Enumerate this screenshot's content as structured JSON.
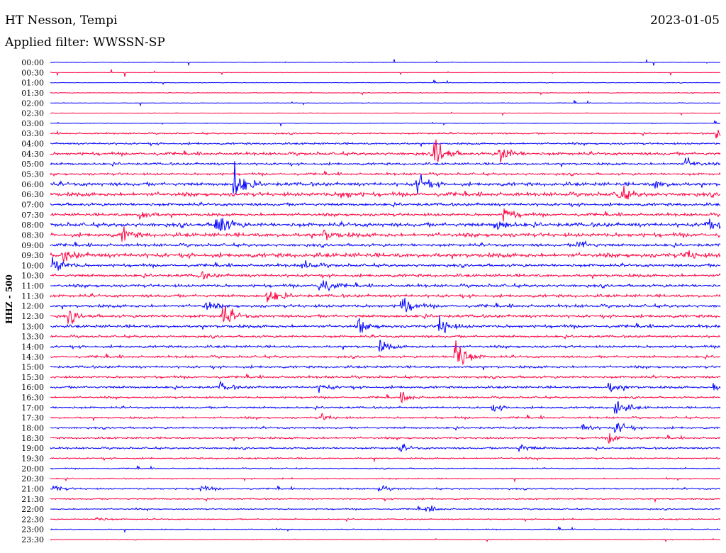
{
  "chart_data": {
    "type": "line",
    "title": "HT Nesson, Tempi",
    "subtitle": "Applied filter: WWSSN-SP",
    "date": "2023-01-05",
    "ylabel": "HHZ - 500",
    "row_minutes": 30,
    "row_labels": [
      "00:00",
      "00:30",
      "01:00",
      "01:30",
      "02:00",
      "02:30",
      "03:00",
      "03:30",
      "04:00",
      "04:30",
      "05:00",
      "05:30",
      "06:00",
      "06:30",
      "07:00",
      "07:30",
      "08:00",
      "08:30",
      "09:00",
      "09:30",
      "10:00",
      "10:30",
      "11:00",
      "11:30",
      "12:00",
      "12:30",
      "13:00",
      "13:30",
      "14:00",
      "14:30",
      "15:00",
      "15:30",
      "16:00",
      "16:30",
      "17:00",
      "17:30",
      "18:00",
      "18:30",
      "19:00",
      "19:30",
      "20:00",
      "20:30",
      "21:00",
      "21:30",
      "22:00",
      "22:30",
      "23:00",
      "23:30"
    ],
    "colors": [
      "#0000ff",
      "#ff0040"
    ],
    "noise_levels": [
      0.3,
      0.2,
      0.3,
      0.3,
      0.3,
      0.3,
      0.3,
      0.8,
      1,
      1.5,
      1.2,
      1.2,
      1.8,
      2,
      1.5,
      1.5,
      2,
      2,
      1.5,
      2.2,
      1.5,
      1.5,
      1.5,
      1.5,
      1.5,
      1.5,
      1.5,
      1.2,
      1.2,
      1.2,
      1.2,
      1.2,
      1.2,
      1,
      1,
      1,
      1,
      1,
      1,
      0.8,
      0.6,
      0.6,
      0.8,
      0.7,
      0.7,
      0.6,
      0.5,
      0.4
    ],
    "events": [
      {
        "row": 7,
        "minute": 29.8,
        "amp": 6
      },
      {
        "row": 9,
        "minute": 17.2,
        "amp": 25
      },
      {
        "row": 9,
        "minute": 20.1,
        "amp": 14
      },
      {
        "row": 10,
        "minute": 28.4,
        "amp": 8
      },
      {
        "row": 12,
        "minute": 8.2,
        "amp": 25
      },
      {
        "row": 12,
        "minute": 16.4,
        "amp": 14
      },
      {
        "row": 12,
        "minute": 27.0,
        "amp": 6
      },
      {
        "row": 13,
        "minute": 25.4,
        "amp": 12
      },
      {
        "row": 13,
        "minute": 13.0,
        "amp": 6
      },
      {
        "row": 15,
        "minute": 20.3,
        "amp": 10
      },
      {
        "row": 15,
        "minute": 4.0,
        "amp": 7
      },
      {
        "row": 16,
        "minute": 7.4,
        "amp": 22
      },
      {
        "row": 16,
        "minute": 19.9,
        "amp": 8
      },
      {
        "row": 16,
        "minute": 29.3,
        "amp": 8
      },
      {
        "row": 17,
        "minute": 3.2,
        "amp": 9
      },
      {
        "row": 17,
        "minute": 12.2,
        "amp": 8
      },
      {
        "row": 18,
        "minute": 23.6,
        "amp": 8
      },
      {
        "row": 19,
        "minute": 0.6,
        "amp": 6
      },
      {
        "row": 19,
        "minute": 28.4,
        "amp": 7
      },
      {
        "row": 20,
        "minute": 0.1,
        "amp": 14
      },
      {
        "row": 20,
        "minute": 11.3,
        "amp": 6
      },
      {
        "row": 21,
        "minute": 6.6,
        "amp": 5
      },
      {
        "row": 22,
        "minute": 12.0,
        "amp": 16
      },
      {
        "row": 23,
        "minute": 9.7,
        "amp": 12
      },
      {
        "row": 24,
        "minute": 15.7,
        "amp": 14
      },
      {
        "row": 24,
        "minute": 6.9,
        "amp": 7
      },
      {
        "row": 25,
        "minute": 7.7,
        "amp": 16
      },
      {
        "row": 25,
        "minute": 0.8,
        "amp": 8
      },
      {
        "row": 26,
        "minute": 13.8,
        "amp": 10
      },
      {
        "row": 26,
        "minute": 17.4,
        "amp": 14
      },
      {
        "row": 28,
        "minute": 14.7,
        "amp": 9
      },
      {
        "row": 29,
        "minute": 18.1,
        "amp": 28
      },
      {
        "row": 32,
        "minute": 7.6,
        "amp": 6
      },
      {
        "row": 32,
        "minute": 12.0,
        "amp": 6
      },
      {
        "row": 32,
        "minute": 25.0,
        "amp": 8
      },
      {
        "row": 32,
        "minute": 29.7,
        "amp": 6
      },
      {
        "row": 33,
        "minute": 15.7,
        "amp": 7
      },
      {
        "row": 34,
        "minute": 25.3,
        "amp": 14
      },
      {
        "row": 34,
        "minute": 19.8,
        "amp": 5
      },
      {
        "row": 35,
        "minute": 12.1,
        "amp": 5
      },
      {
        "row": 36,
        "minute": 23.8,
        "amp": 6
      },
      {
        "row": 36,
        "minute": 25.3,
        "amp": 9
      },
      {
        "row": 37,
        "minute": 25.0,
        "amp": 7
      },
      {
        "row": 38,
        "minute": 15.6,
        "amp": 5
      },
      {
        "row": 38,
        "minute": 21.0,
        "amp": 6
      },
      {
        "row": 42,
        "minute": 0.1,
        "amp": 4
      },
      {
        "row": 42,
        "minute": 6.7,
        "amp": 5
      },
      {
        "row": 42,
        "minute": 14.7,
        "amp": 4
      },
      {
        "row": 44,
        "minute": 16.8,
        "amp": 5
      },
      {
        "row": 45,
        "minute": 2.0,
        "amp": 3
      }
    ]
  }
}
